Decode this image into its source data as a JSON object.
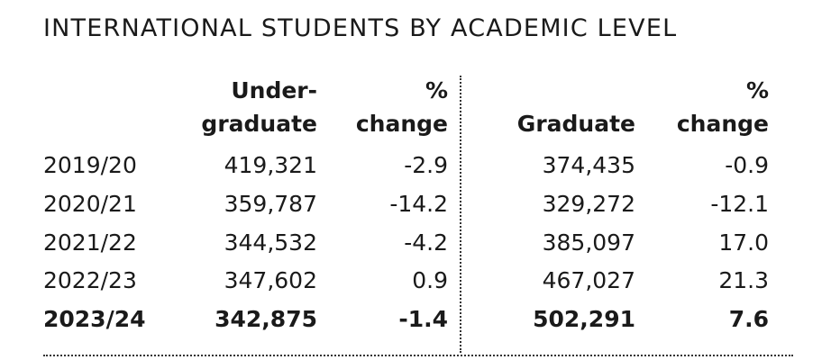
{
  "title": "INTERNATIONAL STUDENTS BY ACADEMIC LEVEL",
  "table": {
    "header": [
      [],
      [
        "Under-",
        "graduate"
      ],
      [
        "%",
        "change"
      ],
      [
        "Graduate"
      ],
      [
        "%",
        "change"
      ]
    ],
    "rows": [
      [
        "2019/20",
        "419,321",
        "-2.9",
        "374,435",
        "-0.9"
      ],
      [
        "2020/21",
        "359,787",
        "-14.2",
        "329,272",
        "-12.1"
      ],
      [
        "2021/22",
        "344,532",
        "-4.2",
        "385,097",
        "17.0"
      ],
      [
        "2022/23",
        "347,602",
        "0.9",
        "467,027",
        "21.3"
      ],
      [
        "2023/24",
        "342,875",
        "-1.4",
        "502,291",
        "7.6"
      ]
    ]
  }
}
